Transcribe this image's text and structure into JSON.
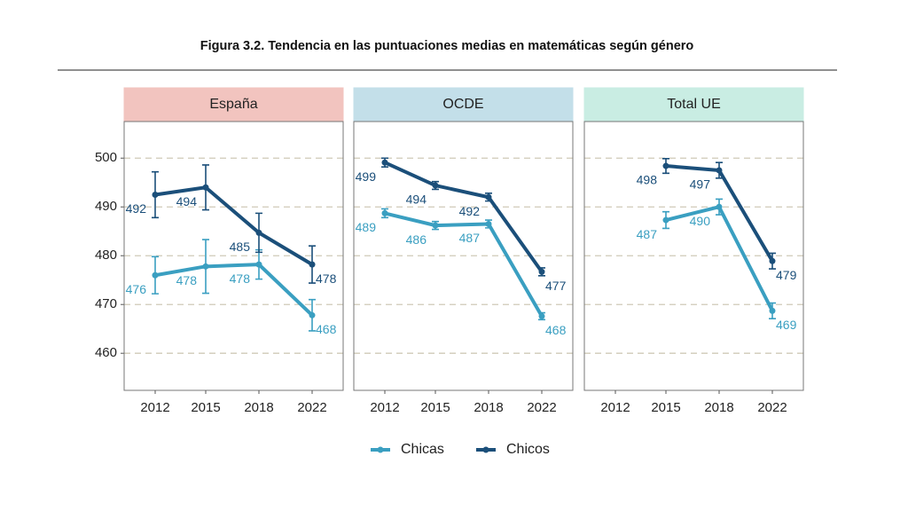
{
  "title": "Figura 3.2. Tendencia en las puntuaciones medias en matemáticas según género",
  "chart_data": [
    {
      "type": "line",
      "title": "España",
      "strip_color": "#f2c4bf",
      "categories": [
        "2012",
        "2015",
        "2018",
        "2022"
      ],
      "ylim": [
        452.4,
        507.5
      ],
      "yticks": [
        460,
        470,
        480,
        490,
        500
      ],
      "grid": true,
      "series": [
        {
          "name": "Chicas",
          "color": "#3a9fc1",
          "values": [
            476.0,
            477.8,
            478.2,
            467.8
          ],
          "errors": [
            3.8,
            5.5,
            3.0,
            3.2
          ],
          "value_labels": [
            "476",
            "478",
            "478",
            "468"
          ]
        },
        {
          "name": "Chicos",
          "color": "#1b4f7a",
          "values": [
            492.5,
            494.0,
            484.7,
            478.2
          ],
          "errors": [
            4.7,
            4.6,
            4.0,
            3.8
          ],
          "value_labels": [
            "492",
            "494",
            "485",
            "478"
          ]
        }
      ]
    },
    {
      "type": "line",
      "title": "OCDE",
      "strip_color": "#c3dfe9",
      "categories": [
        "2012",
        "2015",
        "2018",
        "2022"
      ],
      "ylim": [
        452.4,
        507.5
      ],
      "yticks": [
        460,
        470,
        480,
        490,
        500
      ],
      "grid": true,
      "series": [
        {
          "name": "Chicas",
          "color": "#3a9fc1",
          "values": [
            488.7,
            486.2,
            486.5,
            467.6
          ],
          "errors": [
            0.9,
            0.8,
            0.8,
            0.7
          ],
          "value_labels": [
            "489",
            "486",
            "487",
            "468"
          ]
        },
        {
          "name": "Chicos",
          "color": "#1b4f7a",
          "values": [
            499.1,
            494.4,
            492.0,
            476.7
          ],
          "errors": [
            0.9,
            0.8,
            0.8,
            0.8
          ],
          "value_labels": [
            "499",
            "494",
            "492",
            "477"
          ]
        }
      ]
    },
    {
      "type": "line",
      "title": "Total UE",
      "strip_color": "#c9ede3",
      "categories": [
        "2012",
        "2015",
        "2018",
        "2022"
      ],
      "ylim": [
        452.4,
        507.5
      ],
      "yticks": [
        460,
        470,
        480,
        490,
        500
      ],
      "grid": true,
      "series": [
        {
          "name": "Chicas",
          "color": "#3a9fc1",
          "values": [
            null,
            487.3,
            490.0,
            468.7
          ],
          "errors": [
            null,
            1.7,
            1.6,
            1.6
          ],
          "value_labels": [
            null,
            "487",
            "490",
            "469"
          ]
        },
        {
          "name": "Chicos",
          "color": "#1b4f7a",
          "values": [
            null,
            498.4,
            497.5,
            478.9
          ],
          "errors": [
            null,
            1.5,
            1.6,
            1.6
          ],
          "value_labels": [
            null,
            "498",
            "497",
            "479"
          ]
        }
      ]
    }
  ]
}
